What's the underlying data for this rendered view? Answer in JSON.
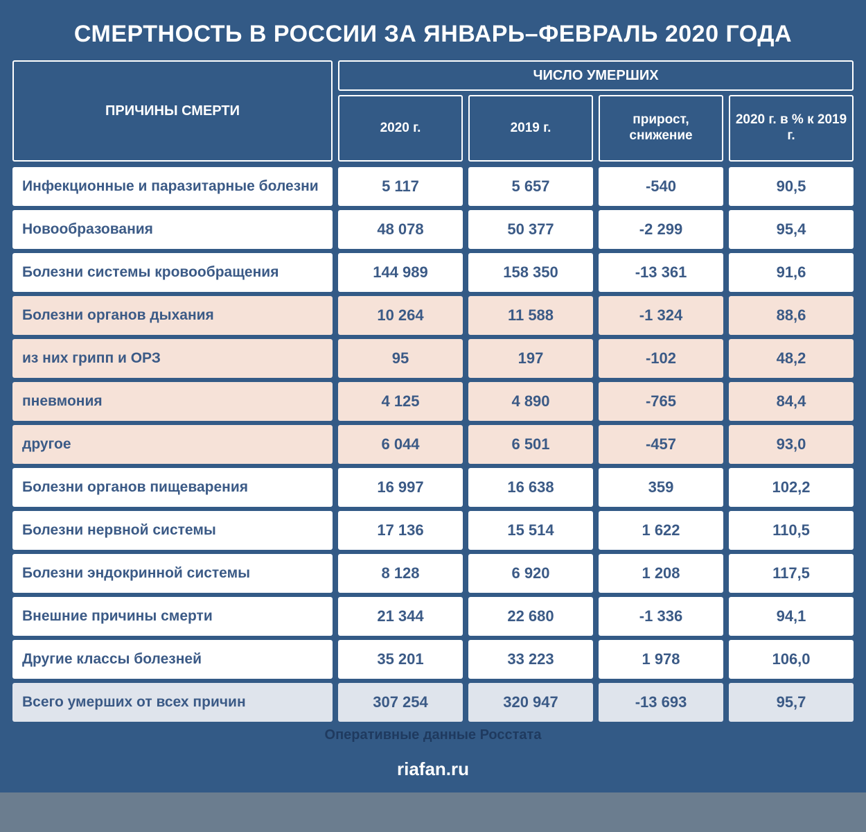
{
  "title": "СМЕРТНОСТЬ В РОССИИ ЗА ЯНВАРЬ–ФЕВРАЛЬ 2020 ГОДА",
  "header": {
    "causes": "ПРИЧИНЫ СМЕРТИ",
    "deaths": "ЧИСЛО УМЕРШИХ",
    "cols": [
      "2020 г.",
      "2019 г.",
      "прирост, снижение",
      "2020 г. в % к 2019 г."
    ]
  },
  "rows": [
    {
      "label": "Инфекционные и паразитарные болезни",
      "v": [
        "5 117",
        "5 657",
        "-540",
        "90,5"
      ],
      "style": "white"
    },
    {
      "label": "Новообразования",
      "v": [
        "48 078",
        "50 377",
        "-2 299",
        "95,4"
      ],
      "style": "white"
    },
    {
      "label": "Болезни системы кровообращения",
      "v": [
        "144 989",
        "158 350",
        "-13 361",
        "91,6"
      ],
      "style": "white"
    },
    {
      "label": "Болезни органов дыхания",
      "v": [
        "10 264",
        "11 588",
        "-1 324",
        "88,6"
      ],
      "style": "pink"
    },
    {
      "label": "из них грипп и ОРЗ",
      "v": [
        "95",
        "197",
        "-102",
        "48,2"
      ],
      "style": "pink"
    },
    {
      "label": "пневмония",
      "v": [
        "4 125",
        "4 890",
        "-765",
        "84,4"
      ],
      "style": "pink"
    },
    {
      "label": "другое",
      "v": [
        "6 044",
        "6 501",
        "-457",
        "93,0"
      ],
      "style": "pink"
    },
    {
      "label": "Болезни органов пищеварения",
      "v": [
        "16 997",
        "16 638",
        "359",
        "102,2"
      ],
      "style": "white"
    },
    {
      "label": "Болезни нервной системы",
      "v": [
        "17 136",
        "15 514",
        "1 622",
        "110,5"
      ],
      "style": "white"
    },
    {
      "label": "Болезни эндокринной системы",
      "v": [
        "8 128",
        "6 920",
        "1 208",
        "117,5"
      ],
      "style": "white"
    },
    {
      "label": "Внешние причины смерти",
      "v": [
        "21 344",
        "22 680",
        "-1 336",
        "94,1"
      ],
      "style": "white"
    },
    {
      "label": "Другие классы болезней",
      "v": [
        "35 201",
        "33 223",
        "1 978",
        "106,0"
      ],
      "style": "white"
    }
  ],
  "total": {
    "label": "Всего умерших от всех причин",
    "v": [
      "307 254",
      "320 947",
      "-13 693",
      "95,7"
    ]
  },
  "footer_note": "Оперативные данные Росстата",
  "footer_site": "riafan.ru",
  "colors": {
    "bg": "#335a86",
    "white": "#ffffff",
    "pink": "#f6e2d8",
    "total_bg": "#dfe4ec",
    "text_blue": "#3b5a86"
  }
}
